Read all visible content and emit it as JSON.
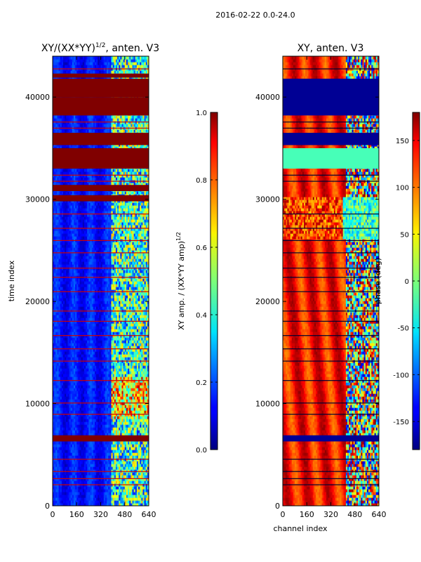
{
  "suptitle": "2016-02-22 0.0-24.0",
  "chart_data": [
    {
      "type": "heatmap",
      "title_main": "XY/(XX*YY)",
      "title_exp": "1/2",
      "title_suffix": ", anten. V3",
      "xlabel": "",
      "ylabel": "time index",
      "xlim": [
        0,
        640
      ],
      "ylim": [
        0,
        44000
      ],
      "xticks": [
        "0",
        "160",
        "320",
        "480",
        "640"
      ],
      "yticks": [
        "0",
        "10000",
        "20000",
        "30000",
        "40000"
      ],
      "colorbar": {
        "label_main": "XY amp. / (XX*YY amp)",
        "label_exp": "1/2",
        "range": [
          0.0,
          1.0
        ],
        "ticks": [
          "0.0",
          "0.2",
          "0.4",
          "0.6",
          "0.8",
          "1.0"
        ],
        "colormap": "jet"
      },
      "saturated_bands": [
        {
          "start": 6300,
          "end": 6900,
          "value": 1.0
        },
        {
          "start": 29800,
          "end": 30400,
          "value": 1.0
        },
        {
          "start": 30800,
          "end": 31400,
          "value": 1.0
        },
        {
          "start": 33000,
          "end": 35000,
          "value": 1.0
        },
        {
          "start": 35300,
          "end": 36500,
          "value": 1.0
        },
        {
          "start": 38200,
          "end": 40000,
          "value": 1.0
        },
        {
          "start": 40000,
          "end": 41800,
          "value": 1.0
        },
        {
          "start": 41900,
          "end": 42300,
          "value": 1.0
        }
      ]
    },
    {
      "type": "heatmap",
      "title": "XY, anten. V3",
      "xlabel": "channel index",
      "ylabel": "",
      "xlim": [
        0,
        640
      ],
      "ylim": [
        0,
        44000
      ],
      "xticks": [
        "0",
        "160",
        "320",
        "480",
        "640"
      ],
      "yticks": [
        "0",
        "10000",
        "20000",
        "30000",
        "40000"
      ],
      "colorbar": {
        "label": "phase (deg)",
        "range": [
          -180,
          180
        ],
        "ticks": [
          "-150",
          "-100",
          "-50",
          "0",
          "50",
          "100",
          "150"
        ],
        "colormap": "jet"
      },
      "flagged_bands": [
        {
          "start": 6300,
          "end": 6900
        },
        {
          "start": 33000,
          "end": 35000,
          "value": -20
        },
        {
          "start": 35300,
          "end": 36500
        },
        {
          "start": 38200,
          "end": 41800
        }
      ]
    }
  ]
}
